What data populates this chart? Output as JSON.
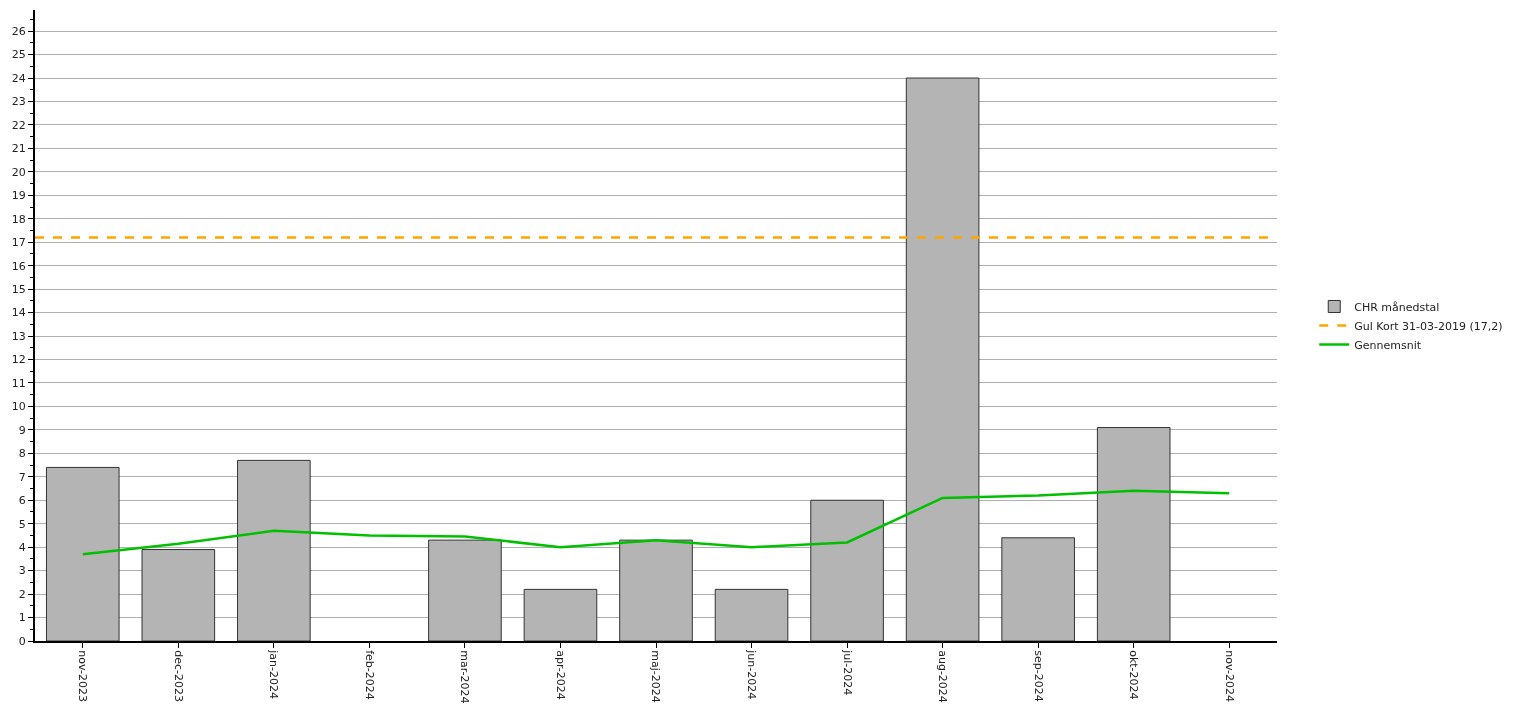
{
  "chart_data": {
    "type": "bar",
    "categories": [
      "nov-2023",
      "dec-2023",
      "jan-2024",
      "feb-2024",
      "mar-2024",
      "apr-2024",
      "maj-2024",
      "jun-2024",
      "jul-2024",
      "aug-2024",
      "sep-2024",
      "okt-2024",
      "nov-2024"
    ],
    "series": [
      {
        "name": "CHR månedstal",
        "color": "#b4b4b4",
        "values": [
          7.4,
          3.9,
          7.7,
          null,
          4.3,
          2.2,
          4.3,
          2.2,
          6.0,
          24.0,
          4.4,
          9.1,
          null
        ]
      },
      {
        "name": "Gennemsnit",
        "type": "line",
        "color": "#00c000",
        "values": [
          3.7,
          4.15,
          4.7,
          4.5,
          4.45,
          4.0,
          4.3,
          4.0,
          4.2,
          6.1,
          6.2,
          6.4,
          6.3
        ]
      }
    ],
    "ref_lines": [
      {
        "axis": "y",
        "value": 17.2,
        "label": "Gul Kort 31-03-2019 (17,2)",
        "color": "#ffa500",
        "line_style": "dashed"
      }
    ],
    "ylim": [
      0,
      26.9
    ],
    "yticks": [
      0,
      1,
      2,
      3,
      4,
      5,
      6,
      7,
      8,
      9,
      10,
      11,
      12,
      13,
      14,
      15,
      16,
      17,
      18,
      19,
      20,
      21,
      22,
      23,
      24,
      25,
      26
    ],
    "grid": "y",
    "legend": "right",
    "marker": "none",
    "line_style": "solid"
  }
}
